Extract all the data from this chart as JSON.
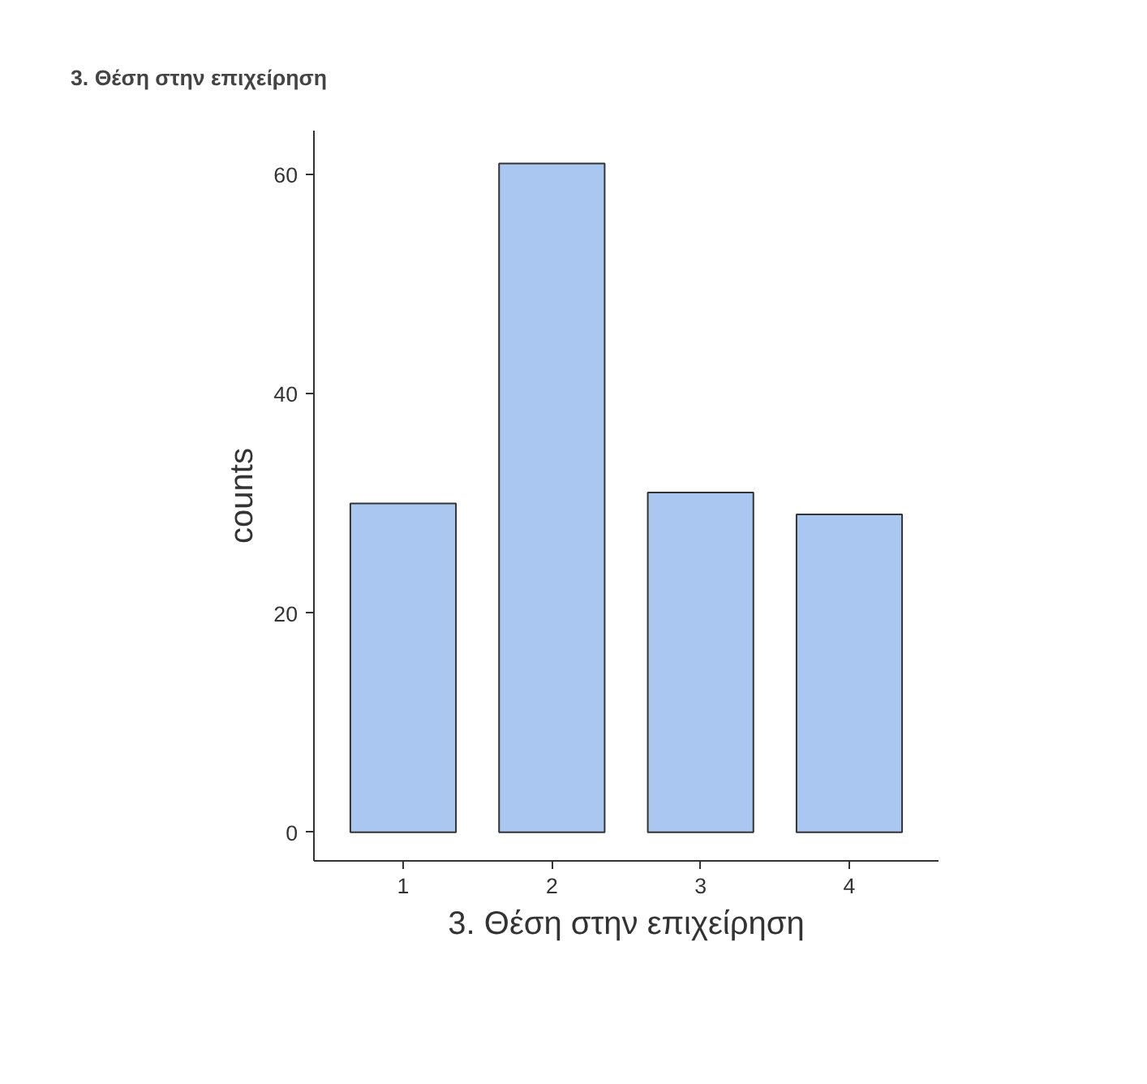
{
  "chart_data": {
    "type": "bar",
    "title": "3. Θέση στην επιχείρηση",
    "xlabel": "3. Θέση στην επιχείρηση",
    "ylabel": "counts",
    "categories": [
      "1",
      "2",
      "3",
      "4"
    ],
    "values": [
      30,
      61,
      31,
      29
    ],
    "color": "#a9c7f0",
    "ylim": [
      -2.6,
      64
    ],
    "yticks": [
      0,
      20,
      40,
      60
    ]
  }
}
